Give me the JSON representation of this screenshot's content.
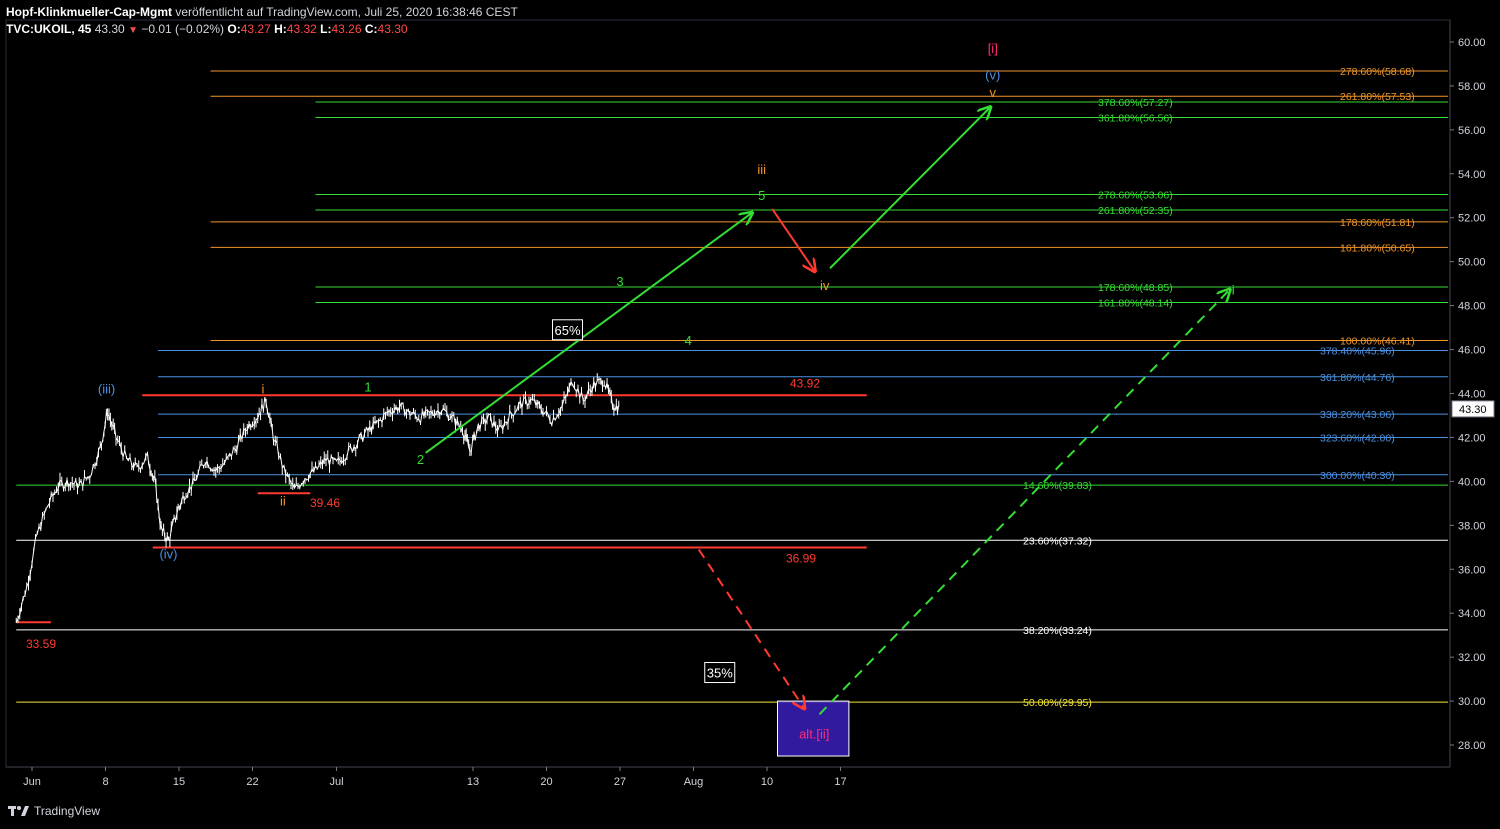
{
  "header": {
    "publisher": "Hopf-Klinkmueller-Cap-Mgmt",
    "published_text": "veröffentlicht auf TradingView.com, Juli 25, 2020 16:38:46 CEST",
    "symbol": "TVC:UKOIL, 45",
    "last_price": "43.30",
    "change": "−0.01 (−0.02%)",
    "open_label": "O:",
    "open": "43.27",
    "high_label": "H:",
    "high": "43.32",
    "low_label": "L:",
    "low": "43.26",
    "close_label": "C:",
    "close": "43.30"
  },
  "footer": {
    "logo_text": "TradingView"
  },
  "colors": {
    "background": "#000000",
    "candles": "#ffffff",
    "green": "#33dd33",
    "orange": "#f0952a",
    "blue": "#4a90e2",
    "red": "#ff3b30",
    "yellow": "#f5e538",
    "white": "#ffffff",
    "magenta": "#ff2d7a",
    "box_fill": "#3a1fb8",
    "price_label_bg": "#ffffff"
  },
  "chart_data": {
    "type": "candlestick",
    "symbol": "TVC:UKOIL",
    "timeframe": "45",
    "ylim": [
      27,
      61
    ],
    "yticks": [
      28,
      30,
      32,
      34,
      36,
      38,
      40,
      42,
      44,
      46,
      48,
      50,
      52,
      54,
      56,
      58,
      60
    ],
    "ytick_labels": [
      "28.00",
      "30.00",
      "32.00",
      "34.00",
      "36.00",
      "38.00",
      "40.00",
      "42.00",
      "44.00",
      "46.00",
      "48.00",
      "50.00",
      "52.00",
      "54.00",
      "56.00",
      "58.00",
      "60.00"
    ],
    "xticks": [
      {
        "label": "Jun",
        "t": 1.5
      },
      {
        "label": "8",
        "t": 8.5
      },
      {
        "label": "15",
        "t": 15.5
      },
      {
        "label": "22",
        "t": 22.5
      },
      {
        "label": "Jul",
        "t": 30.5
      },
      {
        "label": "13",
        "t": 43.5
      },
      {
        "label": "20",
        "t": 50.5
      },
      {
        "label": "27",
        "t": 57.5
      },
      {
        "label": "Aug",
        "t": 64.5
      },
      {
        "label": "10",
        "t": 71.5
      },
      {
        "label": "17",
        "t": 78.5
      }
    ],
    "current_price": "43.30",
    "price_path": [
      [
        0.0,
        33.6
      ],
      [
        1.0,
        35.2
      ],
      [
        2.0,
        37.6
      ],
      [
        3.0,
        38.9
      ],
      [
        4.0,
        39.8
      ],
      [
        5.0,
        40.0
      ],
      [
        6.0,
        39.8
      ],
      [
        7.0,
        40.3
      ],
      [
        8.0,
        41.5
      ],
      [
        8.7,
        43.2
      ],
      [
        9.5,
        42.0
      ],
      [
        10.5,
        41.0
      ],
      [
        11.5,
        40.6
      ],
      [
        12.5,
        41.1
      ],
      [
        13.2,
        40.0
      ],
      [
        13.8,
        37.8
      ],
      [
        14.5,
        37.3
      ],
      [
        15.3,
        38.6
      ],
      [
        16.0,
        39.4
      ],
      [
        17.0,
        40.0
      ],
      [
        18.0,
        41.0
      ],
      [
        19.0,
        40.5
      ],
      [
        20.0,
        40.9
      ],
      [
        21.0,
        41.6
      ],
      [
        22.0,
        42.5
      ],
      [
        23.0,
        43.0
      ],
      [
        23.8,
        43.7
      ],
      [
        24.5,
        42.0
      ],
      [
        25.5,
        40.5
      ],
      [
        26.5,
        39.6
      ],
      [
        27.5,
        40.2
      ],
      [
        28.5,
        40.5
      ],
      [
        29.5,
        41.0
      ],
      [
        30.5,
        40.8
      ],
      [
        31.5,
        41.3
      ],
      [
        32.5,
        41.8
      ],
      [
        33.5,
        42.3
      ],
      [
        34.5,
        42.7
      ],
      [
        35.5,
        43.2
      ],
      [
        36.5,
        43.4
      ],
      [
        37.5,
        43.1
      ],
      [
        38.5,
        42.9
      ],
      [
        39.5,
        43.1
      ],
      [
        40.5,
        43.3
      ],
      [
        41.5,
        42.9
      ],
      [
        42.5,
        42.4
      ],
      [
        43.2,
        41.4
      ],
      [
        44.0,
        42.5
      ],
      [
        45.0,
        42.9
      ],
      [
        46.0,
        42.3
      ],
      [
        47.0,
        43.0
      ],
      [
        48.0,
        43.5
      ],
      [
        49.0,
        43.7
      ],
      [
        50.0,
        43.3
      ],
      [
        51.0,
        42.8
      ],
      [
        52.0,
        43.4
      ],
      [
        53.0,
        44.6
      ],
      [
        54.0,
        43.7
      ],
      [
        55.0,
        44.4
      ],
      [
        56.0,
        44.6
      ],
      [
        56.8,
        43.5
      ],
      [
        57.5,
        43.3
      ]
    ],
    "levels": [
      {
        "label": "278.60%(58.68)",
        "value": 58.68,
        "color": "orange",
        "t0": 18.5,
        "label_x": "far"
      },
      {
        "label": "261.80%(57.53)",
        "value": 57.53,
        "color": "orange",
        "t0": 18.5,
        "label_x": "far"
      },
      {
        "label": "378.60%(57.27)",
        "value": 57.27,
        "color": "green",
        "t0": 28.5,
        "label_x": "mid"
      },
      {
        "label": "361.80%(56.56)",
        "value": 56.56,
        "color": "green",
        "t0": 28.5,
        "label_x": "mid"
      },
      {
        "label": "278.60%(53.06)",
        "value": 53.06,
        "color": "green",
        "t0": 28.5,
        "label_x": "mid"
      },
      {
        "label": "261.80%(52.35)",
        "value": 52.35,
        "color": "green",
        "t0": 28.5,
        "label_x": "mid"
      },
      {
        "label": "178.60%(51.81)",
        "value": 51.81,
        "color": "orange",
        "t0": 18.5,
        "label_x": "far"
      },
      {
        "label": "161.80%(50.65)",
        "value": 50.65,
        "color": "orange",
        "t0": 18.5,
        "label_x": "far"
      },
      {
        "label": "178.60%(48.85)",
        "value": 48.85,
        "color": "green",
        "t0": 28.5,
        "label_x": "mid"
      },
      {
        "label": "161.80%(48.14)",
        "value": 48.14,
        "color": "green",
        "t0": 28.5,
        "label_x": "mid"
      },
      {
        "label": "100.00%(46.41)",
        "value": 46.41,
        "color": "orange",
        "t0": 18.5,
        "label_x": "far"
      },
      {
        "label": "378.40%(45.96)",
        "value": 45.96,
        "color": "blue",
        "t0": 13.5,
        "label_x": "edge"
      },
      {
        "label": "361.80%(44.76)",
        "value": 44.76,
        "color": "blue",
        "t0": 13.5,
        "label_x": "edge"
      },
      {
        "label": "338.20%(43.06)",
        "value": 43.06,
        "color": "blue",
        "t0": 13.5,
        "label_x": "edge"
      },
      {
        "label": "323.60%(42.00)",
        "value": 42.0,
        "color": "blue",
        "t0": 13.5,
        "label_x": "edge"
      },
      {
        "label": "300.00%(40.30)",
        "value": 40.3,
        "color": "blue",
        "t0": 13.5,
        "label_x": "edge"
      },
      {
        "label": "14.60%(39.83)",
        "value": 39.83,
        "color": "green",
        "t0": 0,
        "label_x": "near"
      },
      {
        "label": "23.60%(37.32)",
        "value": 37.32,
        "color": "white",
        "t0": 0,
        "label_x": "near"
      },
      {
        "label": "38.20%(33.24)",
        "value": 33.24,
        "color": "white",
        "t0": 0,
        "label_x": "near"
      },
      {
        "label": "50.00%(29.95)",
        "value": 29.95,
        "color": "yellow",
        "t0": 0,
        "label_x": "near"
      }
    ],
    "hlines": [
      {
        "label": "43.92",
        "value": 43.92,
        "color": "red",
        "t0": 12,
        "t1": 81
      },
      {
        "label": "36.99",
        "value": 36.99,
        "color": "red",
        "t0": 13,
        "t1": 81
      },
      {
        "label": "39.46",
        "value": 39.46,
        "color": "red",
        "t0": 23,
        "t1": 28
      },
      {
        "label": "33.59",
        "value": 33.59,
        "color": "red",
        "t0": 0,
        "t1": 3.3
      }
    ],
    "wave_labels": [
      {
        "text": "(iii)",
        "t": 8.6,
        "v": 44.0,
        "color": "blue"
      },
      {
        "text": "(iv)",
        "t": 14.5,
        "v": 36.5,
        "color": "blue"
      },
      {
        "text": "i",
        "t": 23.5,
        "v": 44.0,
        "color": "orange"
      },
      {
        "text": "ii",
        "t": 25.4,
        "v": 38.9,
        "color": "orange"
      },
      {
        "text": "1",
        "t": 33.5,
        "v": 44.1,
        "color": "green"
      },
      {
        "text": "2",
        "t": 38.5,
        "v": 40.8,
        "color": "green"
      },
      {
        "text": "3",
        "t": 57.5,
        "v": 48.9,
        "color": "green"
      },
      {
        "text": "4",
        "t": 64.0,
        "v": 46.2,
        "color": "green"
      },
      {
        "text": "5",
        "t": 71.0,
        "v": 52.8,
        "color": "green"
      },
      {
        "text": "iii",
        "t": 71.0,
        "v": 54.0,
        "color": "orange"
      },
      {
        "text": "iv",
        "t": 77.0,
        "v": 48.7,
        "color": "orange"
      },
      {
        "text": "(v)",
        "t": 93.0,
        "v": 58.3,
        "color": "blue"
      },
      {
        "text": "v",
        "t": 93.0,
        "v": 57.5,
        "color": "orange"
      },
      {
        "text": "[i]",
        "t": 93.0,
        "v": 59.5,
        "color": "magenta"
      },
      {
        "text": "alt.[ii]",
        "t": 76.0,
        "v": 28.3,
        "color": "magenta"
      }
    ],
    "probability_boxes": [
      {
        "text": "65%",
        "t": 52.5,
        "v": 46.9
      },
      {
        "text": "35%",
        "t": 67.0,
        "v": 31.3
      }
    ],
    "target_box": {
      "t0": 72.5,
      "t1": 79.3,
      "v0": 27.5,
      "v1": 30.0
    },
    "arrows": [
      {
        "from": [
          39.0,
          41.3
        ],
        "to": [
          70.0,
          52.2
        ],
        "color": "green",
        "dashed": false
      },
      {
        "from": [
          72.0,
          52.4
        ],
        "to": [
          76.0,
          49.6
        ],
        "color": "red",
        "dashed": false
      },
      {
        "from": [
          77.5,
          49.7
        ],
        "to": [
          92.7,
          57.0
        ],
        "color": "green",
        "dashed": false
      },
      {
        "from": [
          65.0,
          36.9
        ],
        "to": [
          75.0,
          29.7
        ],
        "color": "red",
        "dashed": true
      },
      {
        "from": [
          76.5,
          29.4
        ],
        "to": [
          115.5,
          48.7
        ],
        "color": "green",
        "dashed": true
      }
    ],
    "end_label": {
      "text": "i",
      "t": 115.9,
      "v": 48.5,
      "color": "green"
    }
  }
}
